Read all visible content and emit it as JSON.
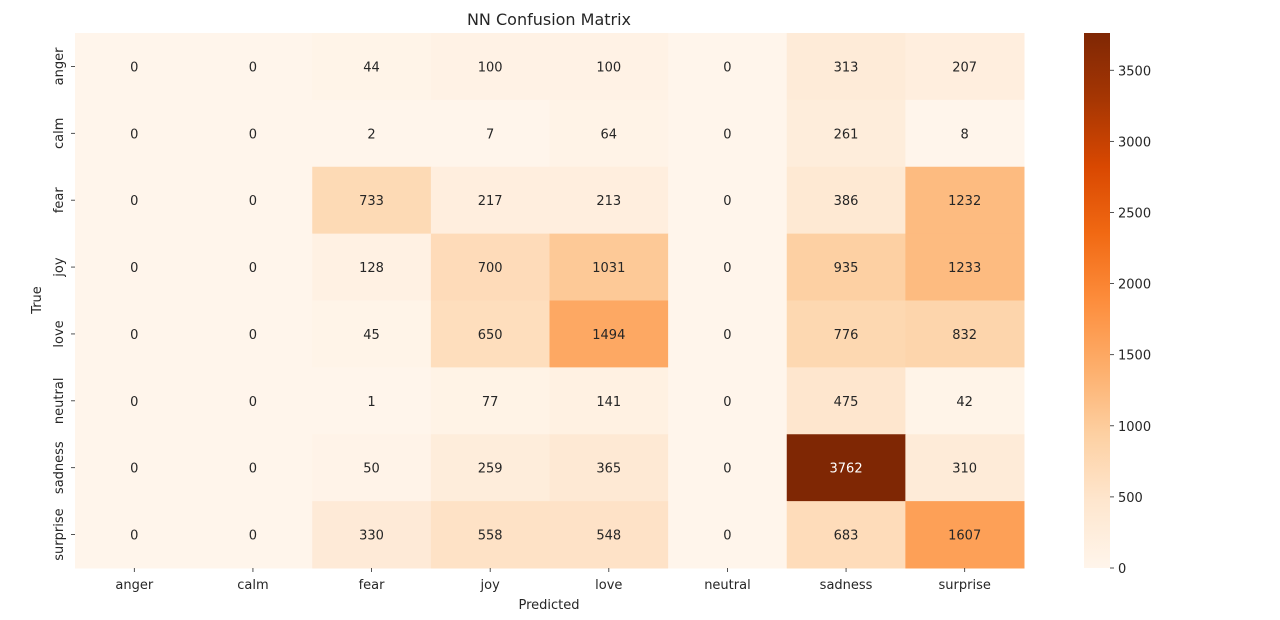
{
  "chart_data": {
    "type": "heatmap",
    "title": "NN Confusion Matrix",
    "xlabel": "Predicted",
    "ylabel": "True",
    "x_categories": [
      "anger",
      "calm",
      "fear",
      "joy",
      "love",
      "neutral",
      "sadness",
      "surprise"
    ],
    "y_categories": [
      "anger",
      "calm",
      "fear",
      "joy",
      "love",
      "neutral",
      "sadness",
      "surprise"
    ],
    "values": [
      [
        0,
        0,
        44,
        100,
        100,
        0,
        313,
        207
      ],
      [
        0,
        0,
        2,
        7,
        64,
        0,
        261,
        8
      ],
      [
        0,
        0,
        733,
        217,
        213,
        0,
        386,
        1232
      ],
      [
        0,
        0,
        128,
        700,
        1031,
        0,
        935,
        1233
      ],
      [
        0,
        0,
        45,
        650,
        1494,
        0,
        776,
        832
      ],
      [
        0,
        0,
        1,
        77,
        141,
        0,
        475,
        42
      ],
      [
        0,
        0,
        50,
        259,
        365,
        0,
        3762,
        310
      ],
      [
        0,
        0,
        330,
        558,
        548,
        0,
        683,
        1607
      ]
    ],
    "colorscale": "Oranges",
    "colorbar": {
      "range": [
        0,
        3762
      ],
      "ticks": [
        0,
        500,
        1000,
        1500,
        2000,
        2500,
        3000,
        3500
      ]
    },
    "colors": [
      "#fff5eb",
      "#fee6ce",
      "#fdd0a2",
      "#fdae6b",
      "#fd8d3c",
      "#f16913",
      "#d94801",
      "#a63603",
      "#7f2704"
    ]
  }
}
